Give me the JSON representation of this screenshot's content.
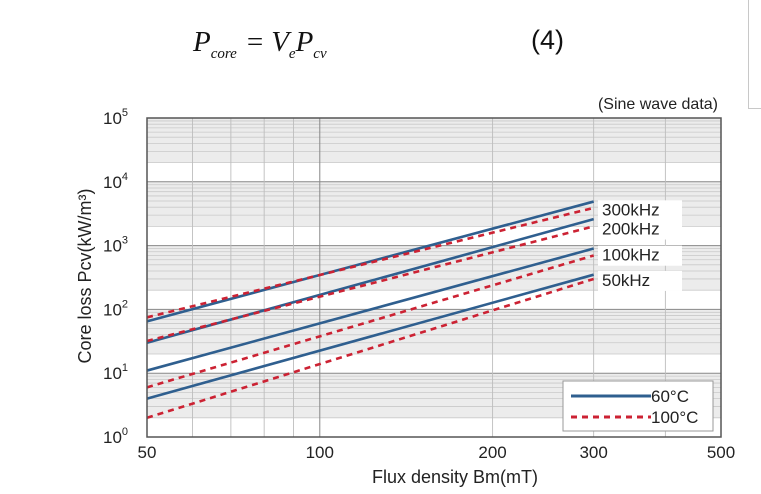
{
  "equation": {
    "lhs": "P",
    "lhs_sub": "core",
    "equals": "=",
    "v": "V",
    "v_sub": "e",
    "p": "P",
    "p_sub": "cv",
    "number": "(4)"
  },
  "chart_data": {
    "type": "line",
    "x_scale": "log",
    "y_scale": "log",
    "note": "(Sine wave data)",
    "xlabel": "Flux density Bm(mT)",
    "ylabel": "Core loss Pcv(kW/m³)",
    "xlim": [
      50,
      500
    ],
    "ylim": [
      1,
      100000
    ],
    "x_ticks": [
      {
        "value": 50,
        "label": "50"
      },
      {
        "value": 100,
        "label": "100"
      },
      {
        "value": 200,
        "label": "200"
      },
      {
        "value": 300,
        "label": "300"
      },
      {
        "value": 500,
        "label": "500"
      }
    ],
    "y_ticks": [
      {
        "value": 1,
        "base": "10",
        "exp": "0"
      },
      {
        "value": 10,
        "base": "10",
        "exp": "1"
      },
      {
        "value": 100,
        "base": "10",
        "exp": "2"
      },
      {
        "value": 1000,
        "base": "10",
        "exp": "3"
      },
      {
        "value": 10000,
        "base": "10",
        "exp": "4"
      },
      {
        "value": 100000,
        "base": "10",
        "exp": "5"
      }
    ],
    "grid": true,
    "frequency_labels": [
      {
        "label": "300kHz",
        "y_value": 3700
      },
      {
        "label": "200kHz",
        "y_value": 1850
      },
      {
        "label": "100kHz",
        "y_value": 720
      },
      {
        "label": "50kHz",
        "y_value": 290
      }
    ],
    "legend": {
      "position": "bottom-right",
      "entries": [
        {
          "name": "60°C",
          "style": "solid",
          "color": "#2f5f8f"
        },
        {
          "name": "100°C",
          "style": "dashed",
          "color": "#cc2233"
        }
      ]
    },
    "series": [
      {
        "name": "300kHz 60°C",
        "style": "solid",
        "color": "#2f5f8f",
        "x": [
          50,
          300
        ],
        "y": [
          65,
          4900
        ]
      },
      {
        "name": "300kHz 100°C",
        "style": "dashed",
        "color": "#cc2233",
        "x": [
          50,
          300
        ],
        "y": [
          75,
          3900
        ]
      },
      {
        "name": "200kHz 60°C",
        "style": "solid",
        "color": "#2f5f8f",
        "x": [
          50,
          300
        ],
        "y": [
          30,
          2600
        ]
      },
      {
        "name": "200kHz 100°C",
        "style": "dashed",
        "color": "#cc2233",
        "x": [
          50,
          300
        ],
        "y": [
          32,
          2000
        ]
      },
      {
        "name": "100kHz 60°C",
        "style": "solid",
        "color": "#2f5f8f",
        "x": [
          50,
          300
        ],
        "y": [
          11,
          900
        ]
      },
      {
        "name": "100kHz 100°C",
        "style": "dashed",
        "color": "#cc2233",
        "x": [
          50,
          300
        ],
        "y": [
          6,
          700
        ]
      },
      {
        "name": "50kHz 60°C",
        "style": "solid",
        "color": "#2f5f8f",
        "x": [
          50,
          300
        ],
        "y": [
          4,
          350
        ]
      },
      {
        "name": "50kHz 100°C",
        "style": "dashed",
        "color": "#cc2233",
        "x": [
          50,
          300
        ],
        "y": [
          2,
          300
        ]
      }
    ]
  }
}
